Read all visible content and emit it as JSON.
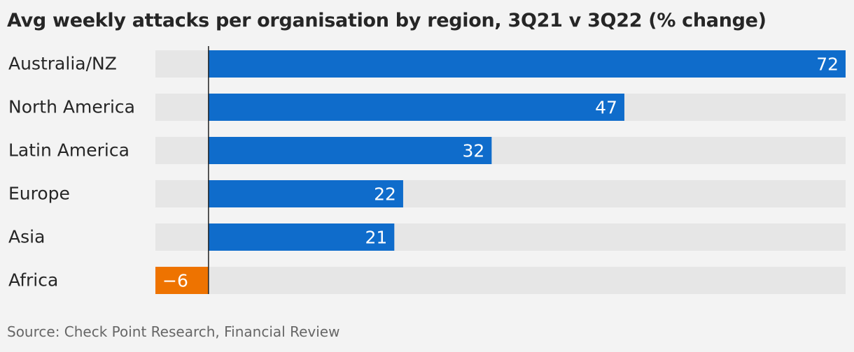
{
  "title": "Avg weekly attacks per organisation by region, 3Q21 v 3Q22 (% change)",
  "source": "Source: Check Point Research, Financial Review",
  "colors": {
    "positive": "#0f6ccb",
    "negative": "#ee7300",
    "track": "#e6e6e6",
    "background": "#f3f3f3",
    "text": "#262626",
    "label_inside": "#ffffff"
  },
  "chart_data": {
    "type": "bar",
    "orientation": "horizontal",
    "categories": [
      "Australia/NZ",
      "North America",
      "Latin America",
      "Europe",
      "Asia",
      "Africa"
    ],
    "values": [
      72,
      47,
      32,
      22,
      21,
      -6
    ],
    "value_labels": [
      "72",
      "47",
      "32",
      "22",
      "21",
      "−6"
    ],
    "xlim": [
      -6,
      72
    ],
    "grid": false,
    "legend": "none"
  }
}
